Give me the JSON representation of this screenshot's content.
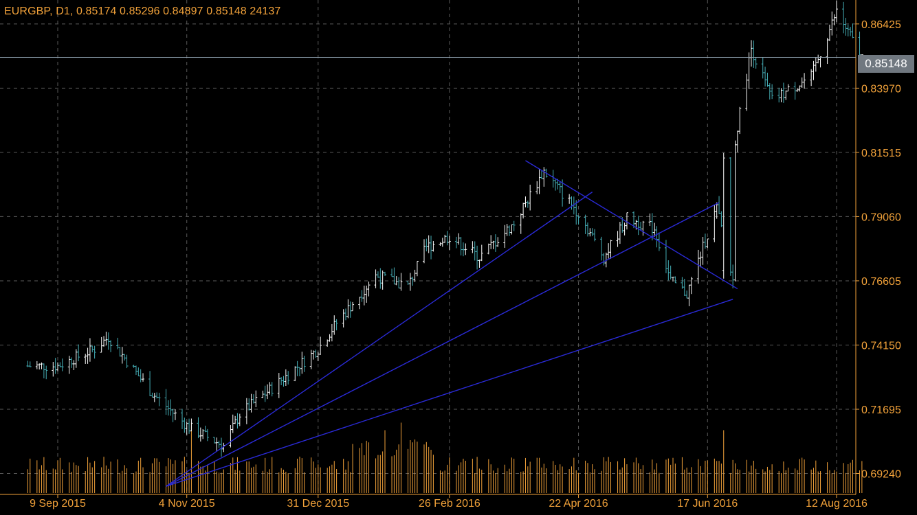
{
  "header": {
    "symbol": "EURGBP",
    "timeframe": "D1",
    "open": "0.85174",
    "high": "0.85296",
    "low": "0.84897",
    "close": "0.85148",
    "volume": "24137"
  },
  "colors": {
    "background": "#000000",
    "axis": "#f2a23a",
    "grid": "#5a5a5a",
    "bull_candle": "#ffffff",
    "bear_candle": "#46b0b8",
    "volume": "#f2a23a",
    "trendline": "#2a2ad6",
    "price_line": "#8fa2b0"
  },
  "chart_data": {
    "type": "ohlc",
    "symbol": "EURGBP",
    "timeframe": "D1",
    "y_ticks": [
      "0.86425",
      "0.83970",
      "0.81515",
      "0.79060",
      "0.76605",
      "0.74150",
      "0.71695",
      "0.69240"
    ],
    "ylim": [
      0.6844,
      0.8734
    ],
    "x_ticks": [
      "9 Sep 2015",
      "4 Nov 2015",
      "31 Dec 2015",
      "26 Feb 2016",
      "22 Apr 2016",
      "17 Jun 2016",
      "12 Aug 2016"
    ],
    "grid": true,
    "current_price": "0.85148",
    "approx_close_path": [
      {
        "date": "2015-09-09",
        "close": 0.7335
      },
      {
        "date": "2015-09-25",
        "close": 0.74
      },
      {
        "date": "2015-10-01",
        "close": 0.7445
      },
      {
        "date": "2015-10-20",
        "close": 0.723
      },
      {
        "date": "2015-11-05",
        "close": 0.71
      },
      {
        "date": "2015-11-20",
        "close": 0.703
      },
      {
        "date": "2015-11-27",
        "close": 0.715
      },
      {
        "date": "2015-12-15",
        "close": 0.728
      },
      {
        "date": "2015-12-31",
        "close": 0.74
      },
      {
        "date": "2016-01-08",
        "close": 0.75
      },
      {
        "date": "2016-01-25",
        "close": 0.768
      },
      {
        "date": "2016-02-08",
        "close": 0.764
      },
      {
        "date": "2016-02-16",
        "close": 0.779
      },
      {
        "date": "2016-02-26",
        "close": 0.783
      },
      {
        "date": "2016-03-10",
        "close": 0.775
      },
      {
        "date": "2016-03-25",
        "close": 0.788
      },
      {
        "date": "2016-04-07",
        "close": 0.808
      },
      {
        "date": "2016-04-22",
        "close": 0.792
      },
      {
        "date": "2016-05-03",
        "close": 0.775
      },
      {
        "date": "2016-05-13",
        "close": 0.79
      },
      {
        "date": "2016-05-25",
        "close": 0.786
      },
      {
        "date": "2016-06-01",
        "close": 0.766
      },
      {
        "date": "2016-06-08",
        "close": 0.761
      },
      {
        "date": "2016-06-21",
        "close": 0.794
      },
      {
        "date": "2016-06-28",
        "close": 0.766
      },
      {
        "date": "2016-06-29",
        "close": 0.82
      },
      {
        "date": "2016-07-06",
        "close": 0.855
      },
      {
        "date": "2016-07-15",
        "close": 0.835
      },
      {
        "date": "2016-08-01",
        "close": 0.844
      },
      {
        "date": "2016-08-12",
        "close": 0.869
      },
      {
        "date": "2016-08-23",
        "close": 0.8515
      }
    ],
    "volume_ylim": [
      0,
      24137
    ]
  }
}
